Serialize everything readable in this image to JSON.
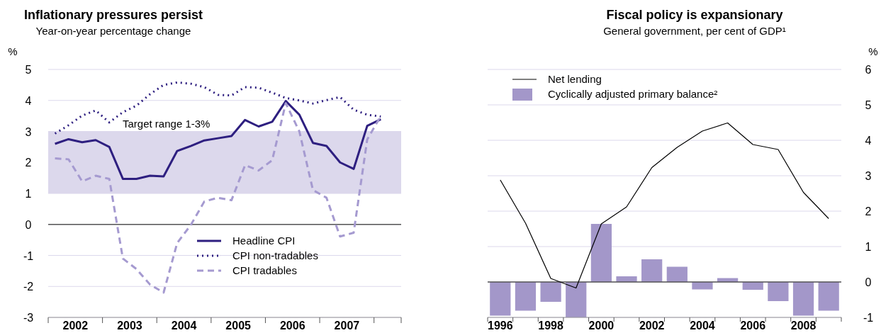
{
  "chart_data": [
    {
      "type": "line",
      "title": "Inflationary pressures persist",
      "subtitle": "Year-on-year percentage change",
      "ylabel": "%",
      "x": [
        2002.125,
        2002.375,
        2002.625,
        2002.875,
        2003.125,
        2003.375,
        2003.625,
        2003.875,
        2004.125,
        2004.375,
        2004.625,
        2004.875,
        2005.125,
        2005.375,
        2005.625,
        2005.875,
        2006.125,
        2006.375,
        2006.625,
        2006.875,
        2007.125,
        2007.375,
        2007.625,
        2007.875,
        2008.125
      ],
      "series": [
        {
          "name": "Headline CPI",
          "color": "#2e1f80",
          "line_style": "solid",
          "values": [
            2.6,
            2.75,
            2.65,
            2.72,
            2.5,
            1.47,
            1.47,
            1.57,
            1.55,
            2.37,
            2.53,
            2.71,
            2.78,
            2.85,
            3.37,
            3.16,
            3.31,
            3.98,
            3.54,
            2.63,
            2.53,
            2.0,
            1.79,
            3.18,
            3.39
          ]
        },
        {
          "name": "CPI non-tradables",
          "color": "#2e1f80",
          "line_style": "dotted",
          "values": [
            2.93,
            3.2,
            3.51,
            3.68,
            3.29,
            3.62,
            3.83,
            4.2,
            4.5,
            4.58,
            4.54,
            4.43,
            4.18,
            4.16,
            4.43,
            4.41,
            4.25,
            4.08,
            4.0,
            3.9,
            4.01,
            4.11,
            3.7,
            3.54,
            3.48
          ]
        },
        {
          "name": "CPI tradables",
          "color": "#a59ad0",
          "line_style": "dashed",
          "values": [
            2.13,
            2.1,
            1.39,
            1.57,
            1.47,
            -1.1,
            -1.44,
            -1.94,
            -2.2,
            -0.6,
            -0.02,
            0.74,
            0.86,
            0.78,
            1.91,
            1.74,
            2.07,
            3.91,
            3.0,
            1.11,
            0.86,
            -0.39,
            -0.27,
            2.74,
            3.5
          ]
        }
      ],
      "xlim": [
        2002,
        2008.5
      ],
      "xticks": [
        {
          "value": 2002,
          "label": null
        },
        {
          "value": 2002.5,
          "label": "2002"
        },
        {
          "value": 2003,
          "label": null
        },
        {
          "value": 2003.5,
          "label": "2003"
        },
        {
          "value": 2004,
          "label": null
        },
        {
          "value": 2004.5,
          "label": "2004"
        },
        {
          "value": 2005,
          "label": null
        },
        {
          "value": 2005.5,
          "label": "2005"
        },
        {
          "value": 2006,
          "label": null
        },
        {
          "value": 2006.5,
          "label": "2006"
        },
        {
          "value": 2007,
          "label": null
        },
        {
          "value": 2007.5,
          "label": "2007"
        },
        {
          "value": 2008,
          "label": null
        },
        {
          "value": 2008.5,
          "label": null
        }
      ],
      "ylim": [
        -3,
        5
      ],
      "yticks": [
        -3,
        -2,
        -1,
        0,
        1,
        2,
        3,
        4,
        5
      ],
      "grid": "y",
      "legend": "bottom",
      "bands": [
        {
          "axis": "y",
          "from": 1,
          "to": 3,
          "label": "Target range 1-3%",
          "color": "#dcd8ec"
        }
      ]
    },
    {
      "type": "bar",
      "title": "Fiscal policy is expansionary",
      "subtitle": "General government, per cent of GDP¹",
      "ylabel": "%",
      "categories": [
        "1996",
        null,
        "1998",
        null,
        "2000",
        null,
        "2002",
        null,
        "2004",
        null,
        "2006",
        null,
        "2008",
        null
      ],
      "series": [
        {
          "name": "Net lending",
          "type": "line",
          "color": "#000000",
          "values": [
            2.88,
            1.66,
            0.1,
            -0.17,
            1.64,
            2.12,
            3.23,
            3.8,
            4.26,
            4.49,
            3.88,
            3.74,
            2.53,
            1.79
          ]
        },
        {
          "name": "Cyclically adjusted primary balance²",
          "type": "bar",
          "color": "#a397c9",
          "values": [
            -0.95,
            -0.81,
            -0.56,
            -1.0,
            1.64,
            0.16,
            0.64,
            0.43,
            -0.21,
            0.11,
            -0.22,
            -0.54,
            -0.95,
            -0.81
          ]
        }
      ],
      "ylim": [
        -1,
        6
      ],
      "yticks": [
        -1,
        0,
        1,
        2,
        3,
        4,
        5,
        6
      ],
      "grid": "y",
      "legend": "top left"
    }
  ]
}
